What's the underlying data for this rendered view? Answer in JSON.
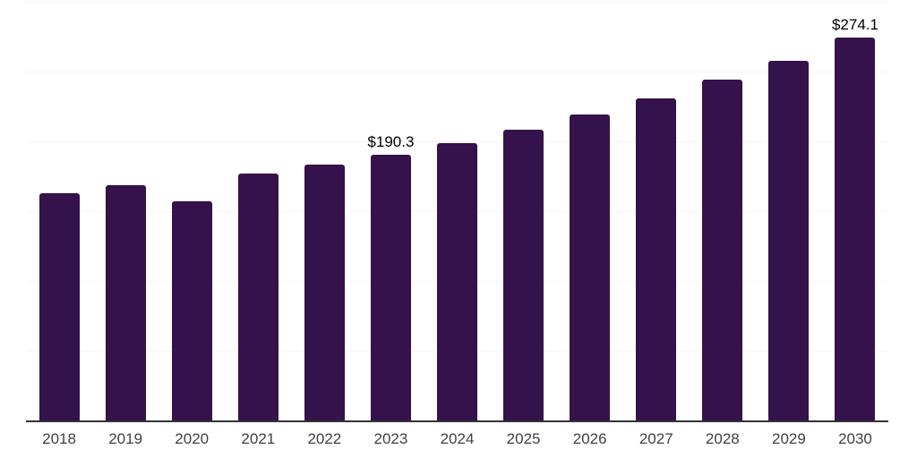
{
  "chart_data": {
    "type": "bar",
    "title": "",
    "xlabel": "",
    "ylabel": "",
    "categories": [
      "2018",
      "2019",
      "2020",
      "2021",
      "2022",
      "2023",
      "2024",
      "2025",
      "2026",
      "2027",
      "2028",
      "2029",
      "2030"
    ],
    "values": [
      163.0,
      168.8,
      157.1,
      176.9,
      183.4,
      190.3,
      198.8,
      208.6,
      219.4,
      230.7,
      244.0,
      258.0,
      274.1
    ],
    "data_labels": {
      "2023": "$190.3",
      "2030": "$274.1"
    },
    "ylim": [
      0,
      300
    ],
    "gridline_step": 50,
    "grid": true,
    "legend": false,
    "y_axis_labels_shown": false,
    "colors": {
      "bar": "#35124B",
      "axis": "#333333",
      "grid": "#F4F4F6",
      "tick_label": "#414141",
      "data_label": "#000000",
      "background": "#FFFFFF"
    }
  }
}
